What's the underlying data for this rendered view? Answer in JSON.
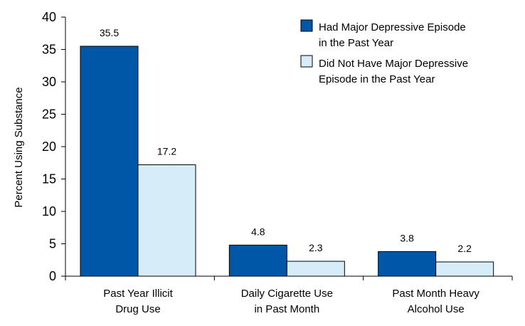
{
  "chart_data": {
    "type": "bar",
    "categories": [
      [
        "Past Year Illicit",
        "Drug Use"
      ],
      [
        "Daily Cigarette Use",
        "in Past Month"
      ],
      [
        "Past Month Heavy",
        "Alcohol Use"
      ]
    ],
    "series": [
      {
        "name": [
          "Had Major Depressive Episode",
          "in the Past Year"
        ],
        "values": [
          35.5,
          4.8,
          3.8
        ],
        "value_labels": [
          "35.5",
          "4.8",
          "3.8"
        ],
        "color": "#0057A8"
      },
      {
        "name": [
          "Did Not Have Major Depressive",
          "Episode in the Past Year"
        ],
        "values": [
          17.2,
          2.3,
          2.2
        ],
        "value_labels": [
          "17.2",
          "2.3",
          "2.2"
        ],
        "color": "#D6ECF9"
      }
    ],
    "ylabel": "Percent Using Substance",
    "ylim": [
      0,
      40
    ],
    "yticks": [
      "0",
      "5",
      "10",
      "15",
      "20",
      "25",
      "30",
      "35",
      "40"
    ],
    "grid": false,
    "legend_position": "top-right",
    "bar_outline_color": "#000000"
  }
}
